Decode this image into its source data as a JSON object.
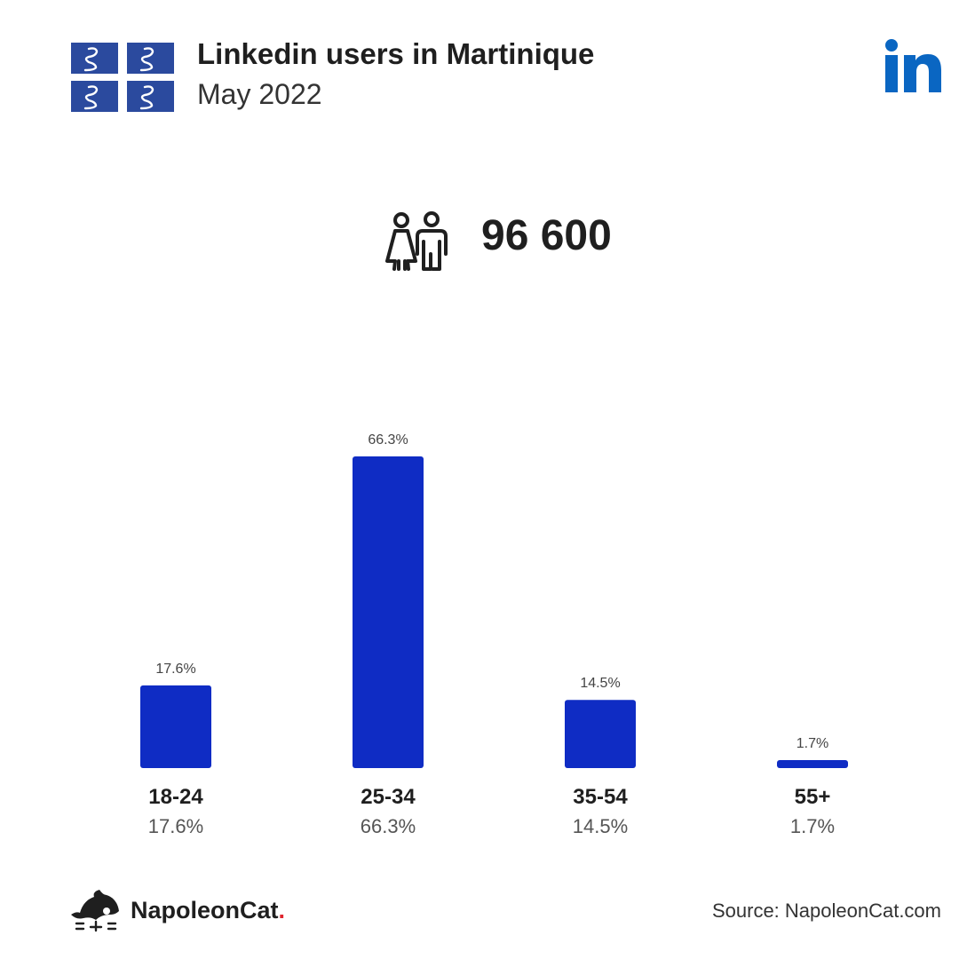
{
  "header": {
    "title": "Linkedin users in Martinique",
    "subtitle": "May 2022",
    "flag_icon": "martinique-flag-icon",
    "brand_icon": "linkedin-logo-icon"
  },
  "total": {
    "icon": "people-icon",
    "value": "96 600"
  },
  "chart_data": {
    "type": "bar",
    "categories": [
      "18-24",
      "25-34",
      "35-54",
      "55+"
    ],
    "values": [
      17.6,
      66.3,
      14.5,
      1.7
    ],
    "value_labels": [
      "17.6%",
      "66.3%",
      "14.5%",
      "1.7%"
    ],
    "title": "",
    "xlabel": "",
    "ylabel": "",
    "ylim": [
      0,
      66.3
    ],
    "grid": false,
    "legend": "none"
  },
  "footer": {
    "brand_name": "NapoleonCat",
    "brand_dot": ".",
    "source": "Source: NapoleonCat.com"
  },
  "colors": {
    "bar": "#0f2cc4",
    "flag_blue": "#2b4a9e",
    "linkedin": "#0a66c2",
    "brand_dot": "#e0262f"
  }
}
